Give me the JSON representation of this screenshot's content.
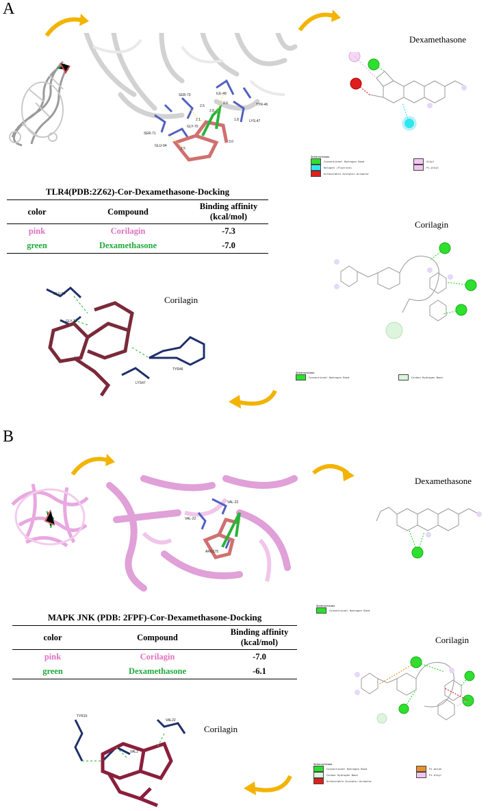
{
  "panels": [
    {
      "letter": "A",
      "table": {
        "caption": "TLR4(PDB:2Z62)-Cor-Dexamethasone-Docking",
        "headers": [
          "color",
          "Compound",
          "Binding affinity (kcal/mol)"
        ],
        "rows": [
          {
            "color": "pink",
            "compound": "Corilagin",
            "affinity": "-7.3"
          },
          {
            "color": "green",
            "compound": "Dexamethasone",
            "affinity": "-7.0"
          }
        ]
      },
      "titles": {
        "dex2d": "Dexamethasone",
        "cor2d": "Corilagin",
        "cor3d": "Corilagin"
      },
      "residues3d": [
        "SER-73",
        "ILE-48",
        "TYR-46",
        "SER-71",
        "GLY-70",
        "LYS-47",
        "GLU-94"
      ],
      "distances3d": [
        "2.5",
        "2.0",
        "2.1",
        "1.8",
        "2.5",
        "3.0",
        "2.8"
      ],
      "cor3d_labels": [
        "GLU-94",
        "GLY-70",
        "TYR46",
        "LYS47"
      ],
      "dex_legend": {
        "head": "Interactions",
        "items": [
          {
            "label": "Conventional Hydrogen Bond",
            "color": "#2ee02e"
          },
          {
            "label": "Halogen (Fluorine)",
            "color": "#2ee8ee"
          },
          {
            "label": "Unfavorable Acceptor-Acceptor",
            "color": "#e01e1e"
          },
          {
            "label": "Alkyl",
            "color": "#f2c8f2"
          },
          {
            "label": "Pi-Alkyl",
            "color": "#f0c4f0"
          }
        ]
      },
      "cor_legend": {
        "head": "Interactions",
        "items": [
          {
            "label": "Conventional Hydrogen Bond",
            "color": "#2ee02e"
          },
          {
            "label": "Carbon Hydrogen Bond",
            "color": "#dcf5dc"
          }
        ]
      }
    },
    {
      "letter": "B",
      "table": {
        "caption": "MAPK JNK (PDB: 2FPF)-Cor-Dexamethasone-Docking",
        "headers": [
          "color",
          "Compound",
          "Binding affinity (kcal/mol)"
        ],
        "rows": [
          {
            "color": "pink",
            "compound": "Corilagin",
            "affinity": "-7.0"
          },
          {
            "color": "green",
            "compound": "Dexamethasone",
            "affinity": "-6.1"
          }
        ]
      },
      "titles": {
        "dex2d": "Dexamethasone",
        "cor2d": "Corilagin",
        "cor3d": "Corilagin"
      },
      "residues3d": [
        "VAL-22",
        "VAL-22",
        "ARG175"
      ],
      "cor3d_labels": [
        "TYR15",
        "VAL22",
        "VAL2"
      ],
      "dex_legend": {
        "head": "Interactions",
        "items": [
          {
            "label": "Conventional Hydrogen Bond",
            "color": "#2ee02e"
          }
        ]
      },
      "cor_legend": {
        "head": "Interactions",
        "items": [
          {
            "label": "Conventional Hydrogen Bond",
            "color": "#2ee02e"
          },
          {
            "label": "Carbon Hydrogen Bond",
            "color": "#dcf5dc"
          },
          {
            "label": "Unfavorable Acceptor-Acceptor",
            "color": "#e01e1e"
          },
          {
            "label": "Pi-Anion",
            "color": "#e8902a"
          },
          {
            "label": "Pi-Alkyl",
            "color": "#f0c4f0"
          }
        ]
      }
    }
  ]
}
